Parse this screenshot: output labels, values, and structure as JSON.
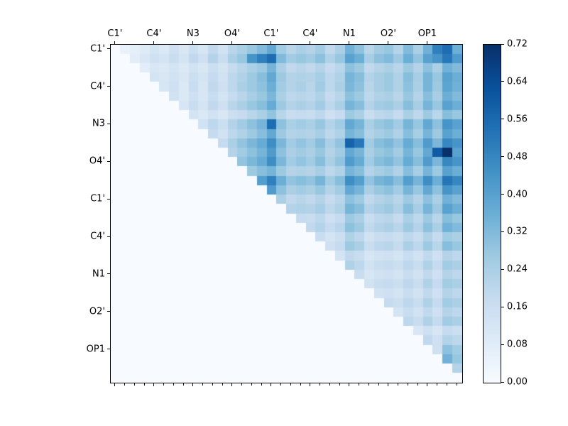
{
  "colors": {
    "background": "#ffffff",
    "axis": "#000000",
    "colormap_low": "#f7fbff",
    "colormap_high": "#08306b"
  },
  "chart_data": {
    "type": "heatmap",
    "title": "",
    "xlabel": "",
    "ylabel": "",
    "colormap": "Blues",
    "vmin": 0.0,
    "vmax": 0.72,
    "legend_position": "right-colorbar",
    "grid": false,
    "group_labels": [
      "C1'",
      "C4'",
      "N3",
      "O4'",
      "C1'",
      "C4'",
      "N1",
      "O2'",
      "OP1"
    ],
    "cells_per_group": 4,
    "n_cells": 36,
    "triangle": "upper",
    "colorbar": {
      "ticks": [
        0.0,
        0.08,
        0.16,
        0.24,
        0.32,
        0.4,
        0.48,
        0.56,
        0.64,
        0.72
      ]
    },
    "matrix": [
      [
        0,
        0.05,
        0.07,
        0.09,
        0.13,
        0.1,
        0.15,
        0.11,
        0.16,
        0.12,
        0.19,
        0.14,
        0.21,
        0.24,
        0.28,
        0.32,
        0.38,
        0.26,
        0.21,
        0.24,
        0.22,
        0.26,
        0.19,
        0.24,
        0.35,
        0.3,
        0.21,
        0.26,
        0.28,
        0.22,
        0.32,
        0.24,
        0.35,
        0.5,
        0.55,
        0.36
      ],
      [
        0,
        0,
        0.08,
        0.11,
        0.15,
        0.13,
        0.17,
        0.13,
        0.19,
        0.15,
        0.22,
        0.17,
        0.24,
        0.28,
        0.44,
        0.5,
        0.55,
        0.32,
        0.26,
        0.28,
        0.26,
        0.3,
        0.23,
        0.28,
        0.4,
        0.36,
        0.25,
        0.3,
        0.32,
        0.27,
        0.36,
        0.29,
        0.4,
        0.44,
        0.52,
        0.42
      ],
      [
        0,
        0,
        0,
        0.08,
        0.11,
        0.1,
        0.13,
        0.1,
        0.14,
        0.11,
        0.16,
        0.13,
        0.18,
        0.21,
        0.24,
        0.27,
        0.34,
        0.24,
        0.19,
        0.21,
        0.19,
        0.22,
        0.18,
        0.21,
        0.3,
        0.27,
        0.19,
        0.22,
        0.24,
        0.21,
        0.27,
        0.22,
        0.3,
        0.24,
        0.35,
        0.32
      ],
      [
        0,
        0,
        0,
        0,
        0.13,
        0.11,
        0.14,
        0.11,
        0.16,
        0.13,
        0.18,
        0.14,
        0.2,
        0.23,
        0.27,
        0.31,
        0.38,
        0.27,
        0.22,
        0.23,
        0.22,
        0.25,
        0.2,
        0.23,
        0.34,
        0.31,
        0.22,
        0.25,
        0.27,
        0.23,
        0.31,
        0.25,
        0.34,
        0.28,
        0.4,
        0.36
      ],
      [
        0,
        0,
        0,
        0,
        0,
        0.12,
        0.15,
        0.1,
        0.17,
        0.12,
        0.19,
        0.15,
        0.2,
        0.24,
        0.27,
        0.3,
        0.36,
        0.26,
        0.22,
        0.24,
        0.21,
        0.26,
        0.2,
        0.24,
        0.33,
        0.3,
        0.21,
        0.25,
        0.27,
        0.23,
        0.3,
        0.24,
        0.34,
        0.27,
        0.39,
        0.35
      ],
      [
        0,
        0,
        0,
        0,
        0,
        0,
        0.14,
        0.1,
        0.15,
        0.12,
        0.17,
        0.13,
        0.18,
        0.21,
        0.25,
        0.28,
        0.33,
        0.24,
        0.2,
        0.21,
        0.2,
        0.23,
        0.18,
        0.21,
        0.3,
        0.27,
        0.2,
        0.23,
        0.24,
        0.21,
        0.28,
        0.22,
        0.31,
        0.25,
        0.36,
        0.32
      ],
      [
        0,
        0,
        0,
        0,
        0,
        0,
        0,
        0.12,
        0.17,
        0.13,
        0.19,
        0.15,
        0.21,
        0.24,
        0.28,
        0.31,
        0.37,
        0.27,
        0.22,
        0.24,
        0.22,
        0.26,
        0.2,
        0.24,
        0.34,
        0.31,
        0.22,
        0.26,
        0.27,
        0.24,
        0.31,
        0.25,
        0.34,
        0.28,
        0.4,
        0.36
      ],
      [
        0,
        0,
        0,
        0,
        0,
        0,
        0,
        0,
        0.13,
        0.1,
        0.14,
        0.11,
        0.16,
        0.18,
        0.21,
        0.24,
        0.29,
        0.21,
        0.17,
        0.18,
        0.17,
        0.2,
        0.15,
        0.18,
        0.27,
        0.24,
        0.17,
        0.2,
        0.21,
        0.18,
        0.24,
        0.2,
        0.27,
        0.21,
        0.31,
        0.28
      ],
      [
        0,
        0,
        0,
        0,
        0,
        0,
        0,
        0,
        0,
        0.14,
        0.2,
        0.16,
        0.22,
        0.26,
        0.3,
        0.34,
        0.55,
        0.3,
        0.24,
        0.26,
        0.24,
        0.28,
        0.22,
        0.26,
        0.38,
        0.34,
        0.24,
        0.28,
        0.3,
        0.26,
        0.34,
        0.28,
        0.38,
        0.3,
        0.44,
        0.4
      ],
      [
        0,
        0,
        0,
        0,
        0,
        0,
        0,
        0,
        0,
        0,
        0.18,
        0.14,
        0.2,
        0.23,
        0.27,
        0.31,
        0.38,
        0.27,
        0.22,
        0.23,
        0.22,
        0.25,
        0.2,
        0.23,
        0.34,
        0.31,
        0.22,
        0.25,
        0.27,
        0.23,
        0.31,
        0.25,
        0.34,
        0.27,
        0.4,
        0.36
      ],
      [
        0,
        0,
        0,
        0,
        0,
        0,
        0,
        0,
        0,
        0,
        0,
        0.18,
        0.24,
        0.29,
        0.33,
        0.37,
        0.46,
        0.33,
        0.26,
        0.29,
        0.26,
        0.31,
        0.24,
        0.29,
        0.58,
        0.52,
        0.26,
        0.31,
        0.33,
        0.29,
        0.37,
        0.31,
        0.42,
        0.33,
        0.48,
        0.44
      ],
      [
        0,
        0,
        0,
        0,
        0,
        0,
        0,
        0,
        0,
        0,
        0,
        0,
        0.22,
        0.26,
        0.3,
        0.34,
        0.42,
        0.3,
        0.24,
        0.26,
        0.24,
        0.28,
        0.22,
        0.26,
        0.38,
        0.34,
        0.24,
        0.28,
        0.3,
        0.26,
        0.34,
        0.28,
        0.38,
        0.6,
        0.72,
        0.4
      ],
      [
        0,
        0,
        0,
        0,
        0,
        0,
        0,
        0,
        0,
        0,
        0,
        0,
        0,
        0.29,
        0.33,
        0.37,
        0.46,
        0.33,
        0.26,
        0.29,
        0.26,
        0.31,
        0.24,
        0.29,
        0.42,
        0.37,
        0.26,
        0.31,
        0.33,
        0.29,
        0.37,
        0.31,
        0.42,
        0.33,
        0.48,
        0.44
      ],
      [
        0,
        0,
        0,
        0,
        0,
        0,
        0,
        0,
        0,
        0,
        0,
        0,
        0,
        0,
        0.27,
        0.31,
        0.34,
        0.27,
        0.22,
        0.23,
        0.22,
        0.25,
        0.2,
        0.23,
        0.34,
        0.31,
        0.22,
        0.25,
        0.27,
        0.23,
        0.31,
        0.25,
        0.34,
        0.27,
        0.4,
        0.36
      ],
      [
        0,
        0,
        0,
        0,
        0,
        0,
        0,
        0,
        0,
        0,
        0,
        0,
        0,
        0,
        0,
        0.41,
        0.5,
        0.36,
        0.29,
        0.31,
        0.29,
        0.34,
        0.26,
        0.31,
        0.46,
        0.41,
        0.29,
        0.34,
        0.36,
        0.31,
        0.41,
        0.34,
        0.46,
        0.36,
        0.53,
        0.48
      ],
      [
        0,
        0,
        0,
        0,
        0,
        0,
        0,
        0,
        0,
        0,
        0,
        0,
        0,
        0,
        0,
        0,
        0.42,
        0.3,
        0.24,
        0.26,
        0.24,
        0.28,
        0.22,
        0.26,
        0.38,
        0.34,
        0.24,
        0.28,
        0.3,
        0.26,
        0.34,
        0.28,
        0.38,
        0.3,
        0.44,
        0.4
      ],
      [
        0,
        0,
        0,
        0,
        0,
        0,
        0,
        0,
        0,
        0,
        0,
        0,
        0,
        0,
        0,
        0,
        0,
        0.24,
        0.19,
        0.21,
        0.19,
        0.22,
        0.18,
        0.21,
        0.3,
        0.27,
        0.19,
        0.22,
        0.24,
        0.21,
        0.27,
        0.22,
        0.3,
        0.24,
        0.35,
        0.32
      ],
      [
        0,
        0,
        0,
        0,
        0,
        0,
        0,
        0,
        0,
        0,
        0,
        0,
        0,
        0,
        0,
        0,
        0,
        0,
        0.22,
        0.23,
        0.22,
        0.25,
        0.2,
        0.23,
        0.34,
        0.31,
        0.22,
        0.25,
        0.27,
        0.23,
        0.31,
        0.25,
        0.34,
        0.27,
        0.4,
        0.36
      ],
      [
        0,
        0,
        0,
        0,
        0,
        0,
        0,
        0,
        0,
        0,
        0,
        0,
        0,
        0,
        0,
        0,
        0,
        0,
        0,
        0.18,
        0.17,
        0.2,
        0.15,
        0.18,
        0.27,
        0.24,
        0.17,
        0.2,
        0.21,
        0.18,
        0.24,
        0.2,
        0.27,
        0.21,
        0.31,
        0.28
      ],
      [
        0,
        0,
        0,
        0,
        0,
        0,
        0,
        0,
        0,
        0,
        0,
        0,
        0,
        0,
        0,
        0,
        0,
        0,
        0,
        0,
        0.19,
        0.22,
        0.18,
        0.21,
        0.3,
        0.27,
        0.19,
        0.22,
        0.24,
        0.21,
        0.27,
        0.22,
        0.3,
        0.24,
        0.35,
        0.32
      ],
      [
        0,
        0,
        0,
        0,
        0,
        0,
        0,
        0,
        0,
        0,
        0,
        0,
        0,
        0,
        0,
        0,
        0,
        0,
        0,
        0,
        0,
        0.17,
        0.13,
        0.16,
        0.23,
        0.2,
        0.14,
        0.17,
        0.18,
        0.16,
        0.2,
        0.17,
        0.23,
        0.18,
        0.26,
        0.24
      ],
      [
        0,
        0,
        0,
        0,
        0,
        0,
        0,
        0,
        0,
        0,
        0,
        0,
        0,
        0,
        0,
        0,
        0,
        0,
        0,
        0,
        0,
        0,
        0.15,
        0.18,
        0.27,
        0.24,
        0.17,
        0.2,
        0.21,
        0.18,
        0.24,
        0.2,
        0.27,
        0.21,
        0.31,
        0.28
      ],
      [
        0,
        0,
        0,
        0,
        0,
        0,
        0,
        0,
        0,
        0,
        0,
        0,
        0,
        0,
        0,
        0,
        0,
        0,
        0,
        0,
        0,
        0,
        0,
        0.13,
        0.19,
        0.17,
        0.12,
        0.14,
        0.15,
        0.13,
        0.17,
        0.14,
        0.19,
        0.15,
        0.22,
        0.2
      ],
      [
        0,
        0,
        0,
        0,
        0,
        0,
        0,
        0,
        0,
        0,
        0,
        0,
        0,
        0,
        0,
        0,
        0,
        0,
        0,
        0,
        0,
        0,
        0,
        0,
        0.23,
        0.2,
        0.14,
        0.17,
        0.18,
        0.16,
        0.2,
        0.17,
        0.23,
        0.18,
        0.26,
        0.24
      ],
      [
        0,
        0,
        0,
        0,
        0,
        0,
        0,
        0,
        0,
        0,
        0,
        0,
        0,
        0,
        0,
        0,
        0,
        0,
        0,
        0,
        0,
        0,
        0,
        0,
        0,
        0.17,
        0.12,
        0.14,
        0.15,
        0.13,
        0.17,
        0.14,
        0.19,
        0.15,
        0.22,
        0.2
      ],
      [
        0,
        0,
        0,
        0,
        0,
        0,
        0,
        0,
        0,
        0,
        0,
        0,
        0,
        0,
        0,
        0,
        0,
        0,
        0,
        0,
        0,
        0,
        0,
        0,
        0,
        0,
        0.14,
        0.17,
        0.18,
        0.16,
        0.2,
        0.17,
        0.23,
        0.18,
        0.26,
        0.24
      ],
      [
        0,
        0,
        0,
        0,
        0,
        0,
        0,
        0,
        0,
        0,
        0,
        0,
        0,
        0,
        0,
        0,
        0,
        0,
        0,
        0,
        0,
        0,
        0,
        0,
        0,
        0,
        0,
        0.14,
        0.15,
        0.13,
        0.17,
        0.14,
        0.19,
        0.15,
        0.22,
        0.2
      ],
      [
        0,
        0,
        0,
        0,
        0,
        0,
        0,
        0,
        0,
        0,
        0,
        0,
        0,
        0,
        0,
        0,
        0,
        0,
        0,
        0,
        0,
        0,
        0,
        0,
        0,
        0,
        0,
        0,
        0.18,
        0.16,
        0.2,
        0.17,
        0.23,
        0.18,
        0.26,
        0.24
      ],
      [
        0,
        0,
        0,
        0,
        0,
        0,
        0,
        0,
        0,
        0,
        0,
        0,
        0,
        0,
        0,
        0,
        0,
        0,
        0,
        0,
        0,
        0,
        0,
        0,
        0,
        0,
        0,
        0,
        0,
        0.13,
        0.17,
        0.14,
        0.19,
        0.15,
        0.22,
        0.2
      ],
      [
        0,
        0,
        0,
        0,
        0,
        0,
        0,
        0,
        0,
        0,
        0,
        0,
        0,
        0,
        0,
        0,
        0,
        0,
        0,
        0,
        0,
        0,
        0,
        0,
        0,
        0,
        0,
        0,
        0,
        0,
        0.2,
        0.17,
        0.23,
        0.18,
        0.26,
        0.24
      ],
      [
        0,
        0,
        0,
        0,
        0,
        0,
        0,
        0,
        0,
        0,
        0,
        0,
        0,
        0,
        0,
        0,
        0,
        0,
        0,
        0,
        0,
        0,
        0,
        0,
        0,
        0,
        0,
        0,
        0,
        0,
        0,
        0.11,
        0.15,
        0.12,
        0.18,
        0.16
      ],
      [
        0,
        0,
        0,
        0,
        0,
        0,
        0,
        0,
        0,
        0,
        0,
        0,
        0,
        0,
        0,
        0,
        0,
        0,
        0,
        0,
        0,
        0,
        0,
        0,
        0,
        0,
        0,
        0,
        0,
        0,
        0,
        0,
        0.19,
        0.15,
        0.22,
        0.2
      ],
      [
        0,
        0,
        0,
        0,
        0,
        0,
        0,
        0,
        0,
        0,
        0,
        0,
        0,
        0,
        0,
        0,
        0,
        0,
        0,
        0,
        0,
        0,
        0,
        0,
        0,
        0,
        0,
        0,
        0,
        0,
        0,
        0,
        0,
        0.15,
        0.3,
        0.26
      ],
      [
        0,
        0,
        0,
        0,
        0,
        0,
        0,
        0,
        0,
        0,
        0,
        0,
        0,
        0,
        0,
        0,
        0,
        0,
        0,
        0,
        0,
        0,
        0,
        0,
        0,
        0,
        0,
        0,
        0,
        0,
        0,
        0,
        0,
        0,
        0.35,
        0.28
      ],
      [
        0,
        0,
        0,
        0,
        0,
        0,
        0,
        0,
        0,
        0,
        0,
        0,
        0,
        0,
        0,
        0,
        0,
        0,
        0,
        0,
        0,
        0,
        0,
        0,
        0,
        0,
        0,
        0,
        0,
        0,
        0,
        0,
        0,
        0,
        0,
        0.22
      ],
      [
        0,
        0,
        0,
        0,
        0,
        0,
        0,
        0,
        0,
        0,
        0,
        0,
        0,
        0,
        0,
        0,
        0,
        0,
        0,
        0,
        0,
        0,
        0,
        0,
        0,
        0,
        0,
        0,
        0,
        0,
        0,
        0,
        0,
        0,
        0,
        0
      ]
    ]
  }
}
